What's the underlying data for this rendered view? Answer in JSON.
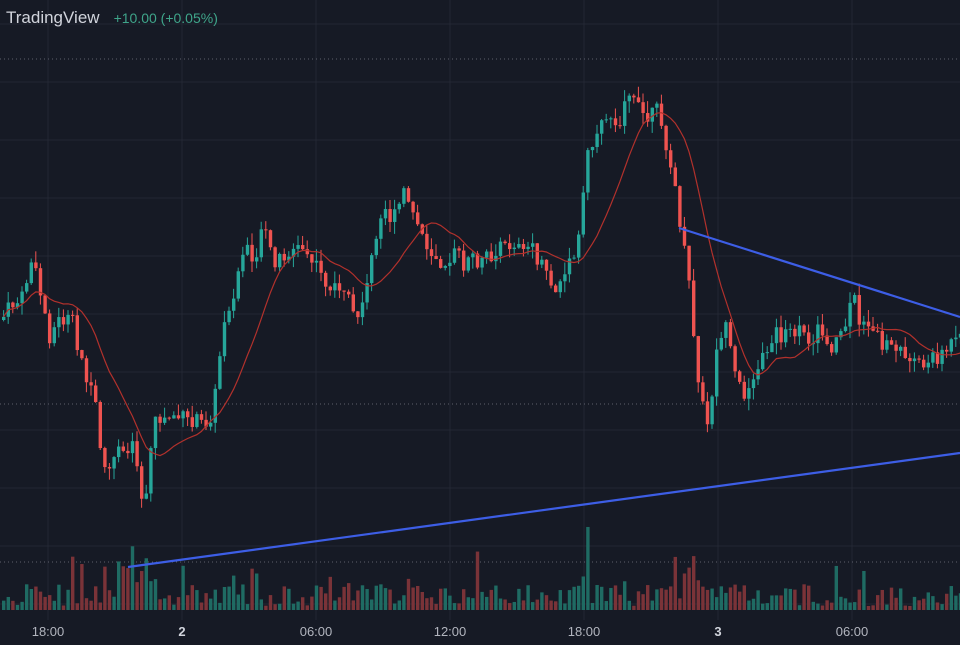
{
  "header": {
    "brand": "TradingView",
    "change": "+10.00 (+0.05%)"
  },
  "colors": {
    "background": "#161a25",
    "grid": "#232734",
    "up": "#26a69a",
    "down": "#ef5350",
    "volume_up": "#1f6b63",
    "volume_down": "#7a3338",
    "ma_line": "#b2312c",
    "trendline": "#3d5ee6",
    "axis_text": "#b2b5be"
  },
  "chart_data": {
    "type": "candlestick",
    "x_ticks": [
      "18:00",
      "2",
      "06:00",
      "12:00",
      "18:00",
      "3",
      "06:00"
    ],
    "major_ticks": [
      "2",
      "3"
    ],
    "has_volume": true,
    "has_moving_average": true,
    "trendlines": 2,
    "grid": true
  }
}
